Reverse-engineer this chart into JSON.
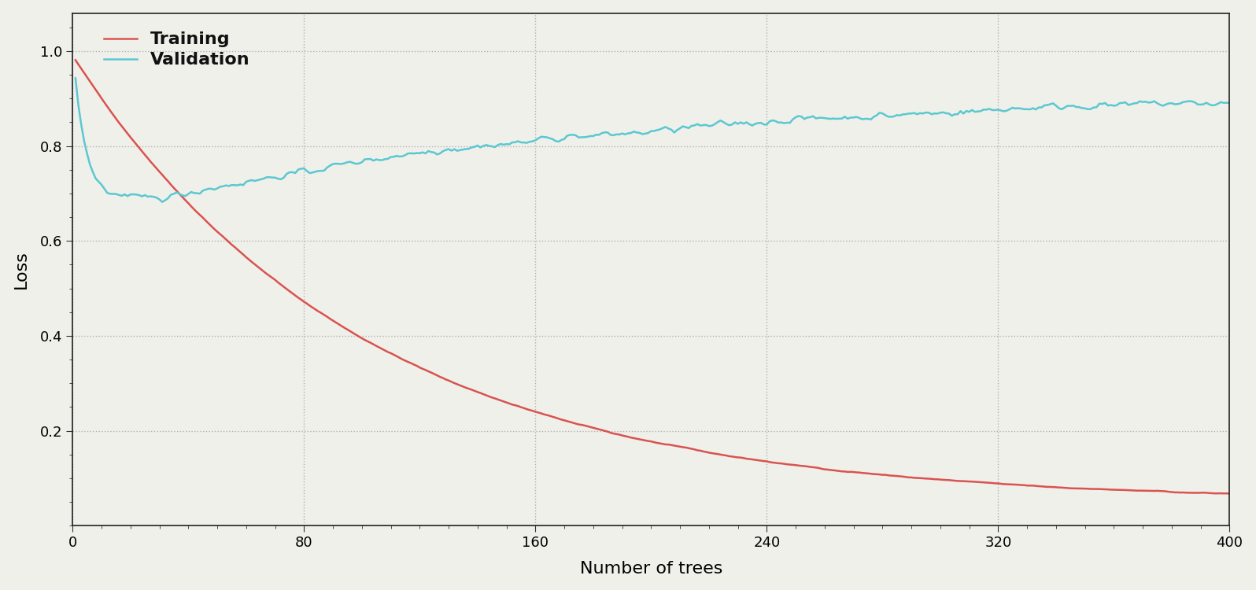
{
  "title": "",
  "xlabel": "Number of trees",
  "ylabel": "Loss",
  "xlim": [
    0,
    400
  ],
  "ylim": [
    0,
    1.08
  ],
  "yticks": [
    0.2,
    0.4,
    0.6,
    0.8,
    1.0
  ],
  "xticks": [
    0,
    80,
    160,
    240,
    320,
    400
  ],
  "training_color": "#d9534f",
  "validation_color": "#5bc8d0",
  "background_color": "#f0f0eb",
  "grid_color": "#b0b0b0",
  "legend_labels": [
    "Training",
    "Validation"
  ],
  "n_trees": 400,
  "seed": 42,
  "figsize": [
    15.96,
    7.5
  ],
  "dpi": 100
}
